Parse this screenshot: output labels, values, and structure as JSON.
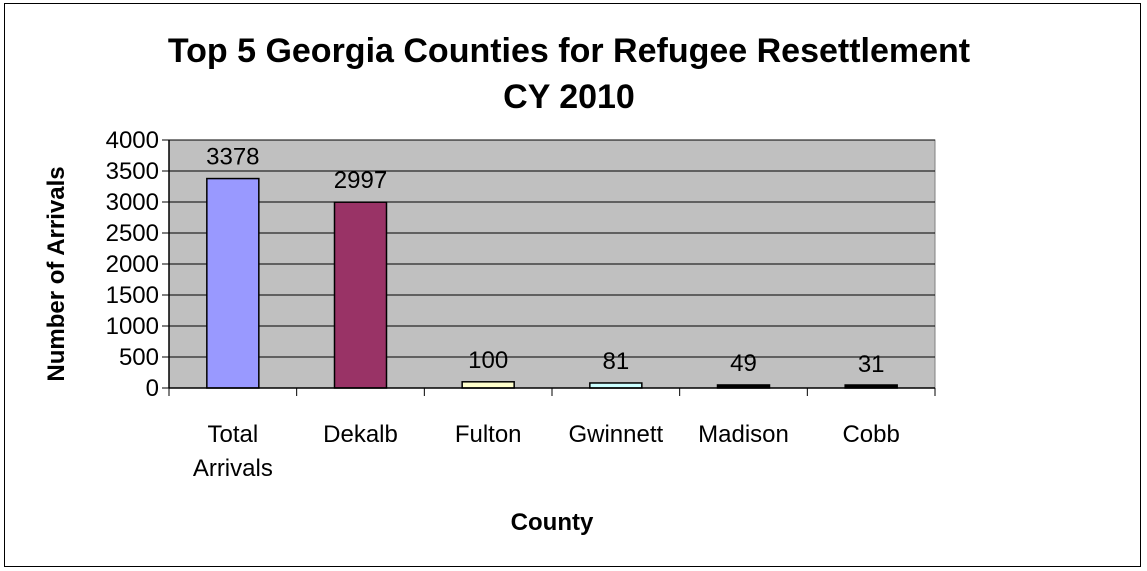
{
  "chart_data": {
    "type": "bar",
    "title": [
      "Top 5 Georgia Counties for Refugee Resettlement",
      "CY 2010"
    ],
    "xlabel": "County",
    "ylabel": "Number of Arrivals",
    "categories": [
      [
        "Total",
        "Arrivals"
      ],
      [
        "Dekalb"
      ],
      [
        "Fulton"
      ],
      [
        "Gwinnett"
      ],
      [
        "Madison"
      ],
      [
        "Cobb"
      ]
    ],
    "values": [
      3378,
      2997,
      100,
      81,
      49,
      31
    ],
    "data_labels": [
      "3378",
      "2997",
      "100",
      "81",
      "49",
      "31"
    ],
    "bar_colors": [
      "#9999ff",
      "#993366",
      "#ffffcc",
      "#ccffff",
      "#000000",
      "#000000"
    ],
    "plot_background": "#c0c0c0",
    "ylim": [
      0,
      4000
    ],
    "yticks": [
      0,
      500,
      1000,
      1500,
      2000,
      2500,
      3000,
      3500,
      4000
    ],
    "grid": true,
    "legend": false
  }
}
